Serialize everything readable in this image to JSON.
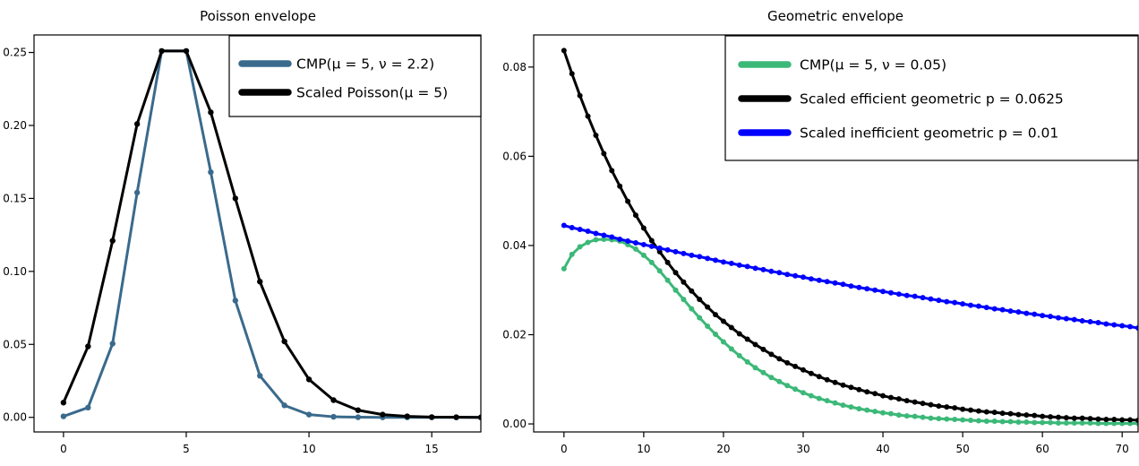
{
  "chart_data": [
    {
      "type": "line",
      "title": "Poisson envelope",
      "xlabel": "",
      "ylabel": "",
      "xlim": [
        -1.2,
        17
      ],
      "ylim": [
        -0.01,
        0.262
      ],
      "x_ticks": [
        0,
        5,
        10,
        15
      ],
      "y_ticks": [
        0.0,
        0.05,
        0.1,
        0.15,
        0.2,
        0.25
      ],
      "x_tick_labels": [
        "0",
        "5",
        "10",
        "15"
      ],
      "y_tick_labels": [
        "0.00",
        "0.05",
        "0.10",
        "0.15",
        "0.20",
        "0.25"
      ],
      "legend_position": "top-right",
      "grid": false,
      "series": [
        {
          "name": "CMP(μ = 5, ν = 2.2)",
          "color": "#3a6a8c",
          "x": [
            0,
            1,
            2,
            3,
            4,
            5,
            6,
            7,
            8,
            9,
            10,
            11,
            12,
            13,
            14,
            15,
            16,
            17
          ],
          "values": [
            0.0007,
            0.0067,
            0.0505,
            0.154,
            0.251,
            0.251,
            0.168,
            0.08,
            0.0285,
            0.0082,
            0.0019,
            0.0004,
            0.0001,
            0,
            0,
            0,
            0,
            0
          ]
        },
        {
          "name": "Scaled Poisson(μ = 5)",
          "color": "#000000",
          "x": [
            0,
            1,
            2,
            3,
            4,
            5,
            6,
            7,
            8,
            9,
            10,
            11,
            12,
            13,
            14,
            15,
            16,
            17
          ],
          "values": [
            0.0101,
            0.0486,
            0.121,
            0.201,
            0.251,
            0.251,
            0.209,
            0.15,
            0.093,
            0.052,
            0.026,
            0.0118,
            0.0049,
            0.0019,
            0.0007,
            0.0002,
            0.0001,
            0
          ]
        }
      ]
    },
    {
      "type": "line",
      "title": "Geometric envelope",
      "xlabel": "",
      "ylabel": "",
      "xlim": [
        -3.8,
        72
      ],
      "ylim": [
        -0.0018,
        0.0872
      ],
      "x_ticks": [
        0,
        10,
        20,
        30,
        40,
        50,
        60,
        70
      ],
      "y_ticks": [
        0.0,
        0.02,
        0.04,
        0.06,
        0.08
      ],
      "x_tick_labels": [
        "0",
        "10",
        "20",
        "30",
        "40",
        "50",
        "60",
        "70"
      ],
      "y_tick_labels": [
        "0.00",
        "0.02",
        "0.04",
        "0.06",
        "0.08"
      ],
      "legend_position": "top-right",
      "grid": false,
      "x_max_point": 72,
      "series": [
        {
          "name": "CMP(μ = 5, ν = 0.05)",
          "color": "#3cb878",
          "x": [
            0,
            1,
            2,
            3,
            4,
            5,
            6,
            7,
            8,
            9,
            10,
            11,
            12,
            13,
            14,
            15,
            16,
            17,
            18,
            19,
            20,
            21,
            22,
            23,
            24,
            25,
            26,
            27,
            28,
            29,
            30,
            31,
            32,
            33,
            34,
            35,
            36,
            37,
            38,
            39,
            40,
            41,
            42,
            43,
            44,
            45,
            46,
            47,
            48,
            49,
            50,
            51,
            52,
            53,
            54,
            55,
            56,
            57,
            58,
            59,
            60,
            61,
            62,
            63,
            64,
            65,
            66,
            67,
            68,
            69,
            70,
            71,
            72
          ],
          "values": [
            0.0348,
            0.038,
            0.0397,
            0.0407,
            0.0413,
            0.0414,
            0.0413,
            0.041,
            0.0402,
            0.0392,
            0.0378,
            0.0362,
            0.0343,
            0.0322,
            0.03,
            0.0279,
            0.0258,
            0.0238,
            0.0219,
            0.0201,
            0.0184,
            0.0168,
            0.0153,
            0.0139,
            0.0126,
            0.0115,
            0.0104,
            0.0095,
            0.0086,
            0.0078,
            0.007,
            0.0063,
            0.0057,
            0.0052,
            0.0047,
            0.0042,
            0.0038,
            0.0034,
            0.0031,
            0.0028,
            0.0025,
            0.0023,
            0.002,
            0.0018,
            0.0017,
            0.0015,
            0.0013,
            0.0012,
            0.0011,
            0.001,
            0.0009,
            0.0008,
            0.0007,
            0.0006,
            0.0006,
            0.0005,
            0.0005,
            0.0004,
            0.0004,
            0.0003,
            0.0003,
            0.0003,
            0.0002,
            0.0002,
            0.0002,
            0.0002,
            0.0002,
            0.0001,
            0.0001,
            0.0001,
            0.0001,
            0.0001,
            0.0001
          ]
        },
        {
          "name": "Scaled efficient geometric p = 0.0625",
          "color": "#000000",
          "x": [
            0,
            1,
            2,
            3,
            4,
            5,
            6,
            7,
            8,
            9,
            10,
            11,
            12,
            13,
            14,
            15,
            16,
            17,
            18,
            19,
            20,
            21,
            22,
            23,
            24,
            25,
            26,
            27,
            28,
            29,
            30,
            31,
            32,
            33,
            34,
            35,
            36,
            37,
            38,
            39,
            40,
            41,
            42,
            43,
            44,
            45,
            46,
            47,
            48,
            49,
            50,
            51,
            52,
            53,
            54,
            55,
            56,
            57,
            58,
            59,
            60,
            61,
            62,
            63,
            64,
            65,
            66,
            67,
            68,
            69,
            70,
            71,
            72
          ],
          "values": [
            0.0837,
            0.0785,
            0.0736,
            0.069,
            0.0647,
            0.0606,
            0.0568,
            0.0533,
            0.0499,
            0.0468,
            0.0439,
            0.0411,
            0.0386,
            0.0362,
            0.0339,
            0.0318,
            0.0298,
            0.0279,
            0.0262,
            0.0245,
            0.023,
            0.0216,
            0.0202,
            0.019,
            0.0178,
            0.0167,
            0.0156,
            0.0146,
            0.0137,
            0.0129,
            0.0121,
            0.0113,
            0.0106,
            0.0099,
            0.0093,
            0.0087,
            0.0082,
            0.0077,
            0.0072,
            0.0068,
            0.0063,
            0.0059,
            0.0056,
            0.0052,
            0.0049,
            0.0046,
            0.0043,
            0.004,
            0.0038,
            0.0036,
            0.0033,
            0.0031,
            0.0029,
            0.0027,
            0.0026,
            0.0024,
            0.0023,
            0.0021,
            0.002,
            0.0019,
            0.0017,
            0.0016,
            0.0015,
            0.0014,
            0.0013,
            0.0013,
            0.0012,
            0.0011,
            0.001,
            0.001,
            0.0009,
            0.0009,
            0.0008
          ]
        },
        {
          "name": "Scaled inefficient geometric p = 0.01",
          "color": "#0000ff",
          "x": [
            0,
            1,
            2,
            3,
            4,
            5,
            6,
            7,
            8,
            9,
            10,
            11,
            12,
            13,
            14,
            15,
            16,
            17,
            18,
            19,
            20,
            21,
            22,
            23,
            24,
            25,
            26,
            27,
            28,
            29,
            30,
            31,
            32,
            33,
            34,
            35,
            36,
            37,
            38,
            39,
            40,
            41,
            42,
            43,
            44,
            45,
            46,
            47,
            48,
            49,
            50,
            51,
            52,
            53,
            54,
            55,
            56,
            57,
            58,
            59,
            60,
            61,
            62,
            63,
            64,
            65,
            66,
            67,
            68,
            69,
            70,
            71,
            72
          ],
          "values": [
            0.0445,
            0.044,
            0.0436,
            0.0432,
            0.0427,
            0.0423,
            0.0419,
            0.0414,
            0.041,
            0.0406,
            0.0402,
            0.0398,
            0.0394,
            0.039,
            0.0386,
            0.0382,
            0.0378,
            0.0375,
            0.0371,
            0.0367,
            0.0363,
            0.036,
            0.0356,
            0.0353,
            0.0349,
            0.0346,
            0.0342,
            0.0339,
            0.0335,
            0.0332,
            0.0329,
            0.0325,
            0.0322,
            0.0319,
            0.0316,
            0.0313,
            0.0309,
            0.0306,
            0.0303,
            0.03,
            0.0297,
            0.0294,
            0.0291,
            0.0288,
            0.0286,
            0.0283,
            0.028,
            0.0277,
            0.0274,
            0.0272,
            0.0269,
            0.0266,
            0.0264,
            0.0261,
            0.0258,
            0.0256,
            0.0253,
            0.0251,
            0.0248,
            0.0246,
            0.0243,
            0.0241,
            0.0238,
            0.0236,
            0.0234,
            0.0231,
            0.0229,
            0.0227,
            0.0224,
            0.0222,
            0.022,
            0.0218,
            0.0215
          ]
        }
      ]
    }
  ]
}
